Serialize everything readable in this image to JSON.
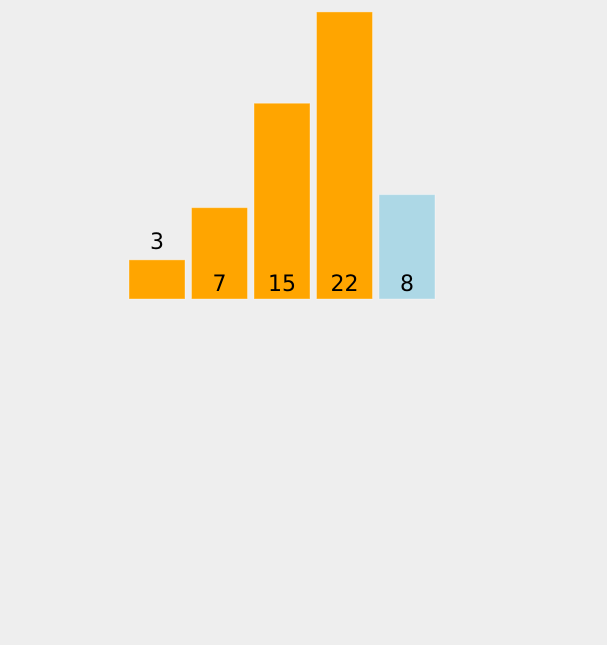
{
  "chart_data": {
    "type": "bar",
    "categories": [
      "",
      "",
      "",
      "",
      ""
    ],
    "values": [
      3,
      7,
      15,
      22,
      8
    ],
    "data_labels": [
      "3",
      "7",
      "15",
      "22",
      "8"
    ],
    "colors": [
      "#ffa500",
      "#ffa500",
      "#ffa500",
      "#ffa500",
      "#add8e6"
    ],
    "title": "",
    "xlabel": "",
    "ylabel": "",
    "ylim": [
      0,
      22
    ],
    "grid": false,
    "axes_visible": false,
    "background": "#eeeeee"
  }
}
